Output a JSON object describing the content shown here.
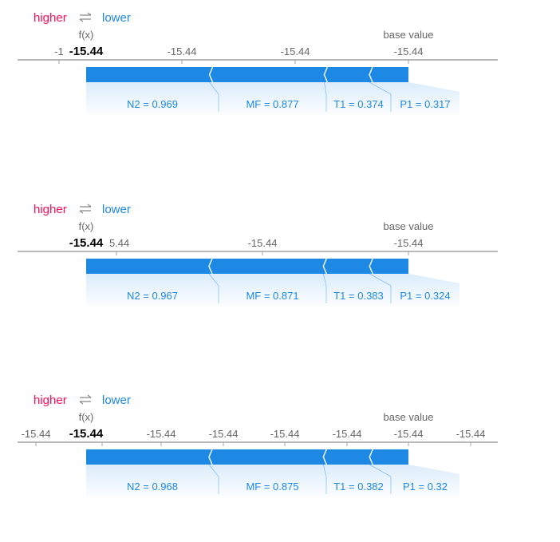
{
  "colors": {
    "higher": "#ff0d57",
    "lower": "#1e88e5",
    "axis": "#a3a3a3",
    "text_muted": "#666666"
  },
  "legend": {
    "higher": "higher",
    "swap_icon": "swap-arrows-icon",
    "lower": "lower"
  },
  "chart_data": [
    {
      "type": "force",
      "fx_label": "f(x)",
      "fx_value": "-15.44",
      "base_label": "base value",
      "tick_labels": [
        "-1",
        "-15.44",
        "-15.44",
        "-15.44"
      ],
      "features": [
        {
          "label": "N2 = 0.969",
          "weight": 1.01
        },
        {
          "label": "MF = 0.877",
          "weight": 0.94
        },
        {
          "label": "T1 = 0.374",
          "weight": 0.37
        },
        {
          "label": "P1 = 0.317",
          "weight": 0.32
        }
      ]
    },
    {
      "type": "force",
      "fx_label": "f(x)",
      "fx_value": "-15.44",
      "base_label": "base value",
      "tick_labels": [
        "15.44",
        "-15.44",
        "-15.44"
      ],
      "features": [
        {
          "label": "N2 = 0.967",
          "weight": 1.01
        },
        {
          "label": "MF = 0.871",
          "weight": 0.94
        },
        {
          "label": "T1 = 0.383",
          "weight": 0.38
        },
        {
          "label": "P1 = 0.324",
          "weight": 0.32
        }
      ]
    },
    {
      "type": "force",
      "fx_label": "f(x)",
      "fx_value": "-15.44",
      "base_label": "base value",
      "tick_labels": [
        "-15.44",
        "4",
        "-15.44",
        "-15.44",
        "-15.44",
        "-15.44",
        "-15.44",
        "-15.44"
      ],
      "features": [
        {
          "label": "N2 = 0.968",
          "weight": 1.01
        },
        {
          "label": "MF = 0.875",
          "weight": 0.94
        },
        {
          "label": "T1 = 0.382",
          "weight": 0.38
        },
        {
          "label": "P1 = 0.32",
          "weight": 0.32
        }
      ]
    }
  ]
}
